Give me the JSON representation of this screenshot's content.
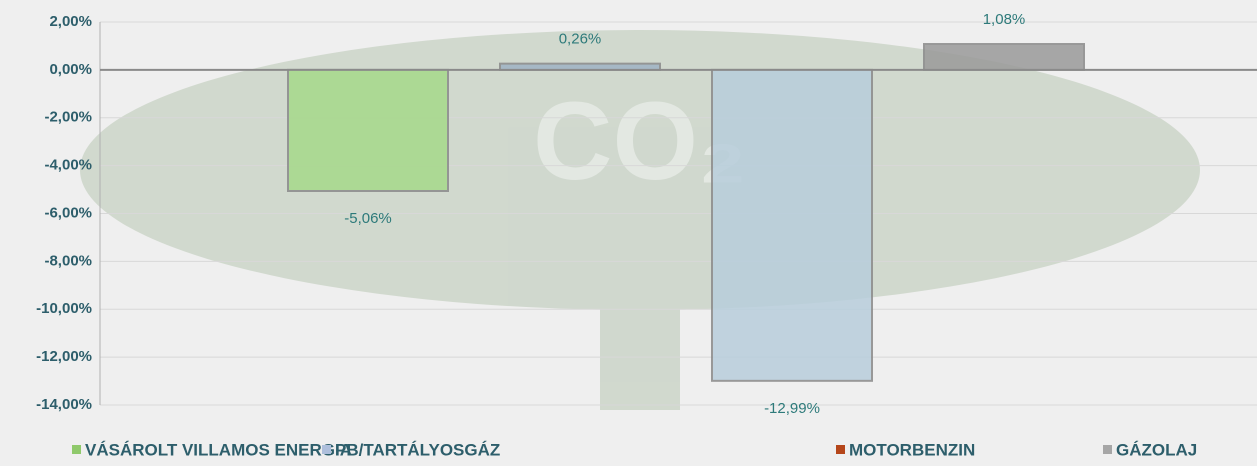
{
  "chart_data": {
    "type": "bar",
    "series": [
      {
        "name": "VÁSÁROLT VILLAMOS ENERGIA",
        "color": "#8fc96b",
        "bar_color": "#a6d98a",
        "values": [
          -5.06
        ],
        "value_labels": [
          "-5,06%"
        ]
      },
      {
        "name": "PB/TARTÁLYOSGÁZ",
        "color": "#aebfdc",
        "bar_color": "#9fb3c4",
        "values": [
          0.26
        ],
        "value_labels": [
          "0,26%"
        ]
      },
      {
        "name": "MOTORBENZIN",
        "color": "#b5461a",
        "bar_color": "#b8cedc",
        "values": [
          -12.99
        ],
        "value_labels": [
          "-12,99%"
        ]
      },
      {
        "name": "GÁZOLAJ",
        "color": "#a6a6a6",
        "bar_color": "#9a9a9a",
        "values": [
          1.08
        ],
        "value_labels": [
          "1,08%"
        ]
      }
    ],
    "ylim": [
      -14,
      2
    ],
    "yticks": [
      {
        "value": 2,
        "label": "2,00%"
      },
      {
        "value": 0,
        "label": "0,00%"
      },
      {
        "value": -2,
        "label": "-2,00%"
      },
      {
        "value": -4,
        "label": "-4,00%"
      },
      {
        "value": -6,
        "label": "-6,00%"
      },
      {
        "value": -8,
        "label": "-8,00%"
      },
      {
        "value": -10,
        "label": "-10,00%"
      },
      {
        "value": -12,
        "label": "-12,00%"
      },
      {
        "value": -14,
        "label": "-14,00%"
      }
    ],
    "grid": true
  }
}
